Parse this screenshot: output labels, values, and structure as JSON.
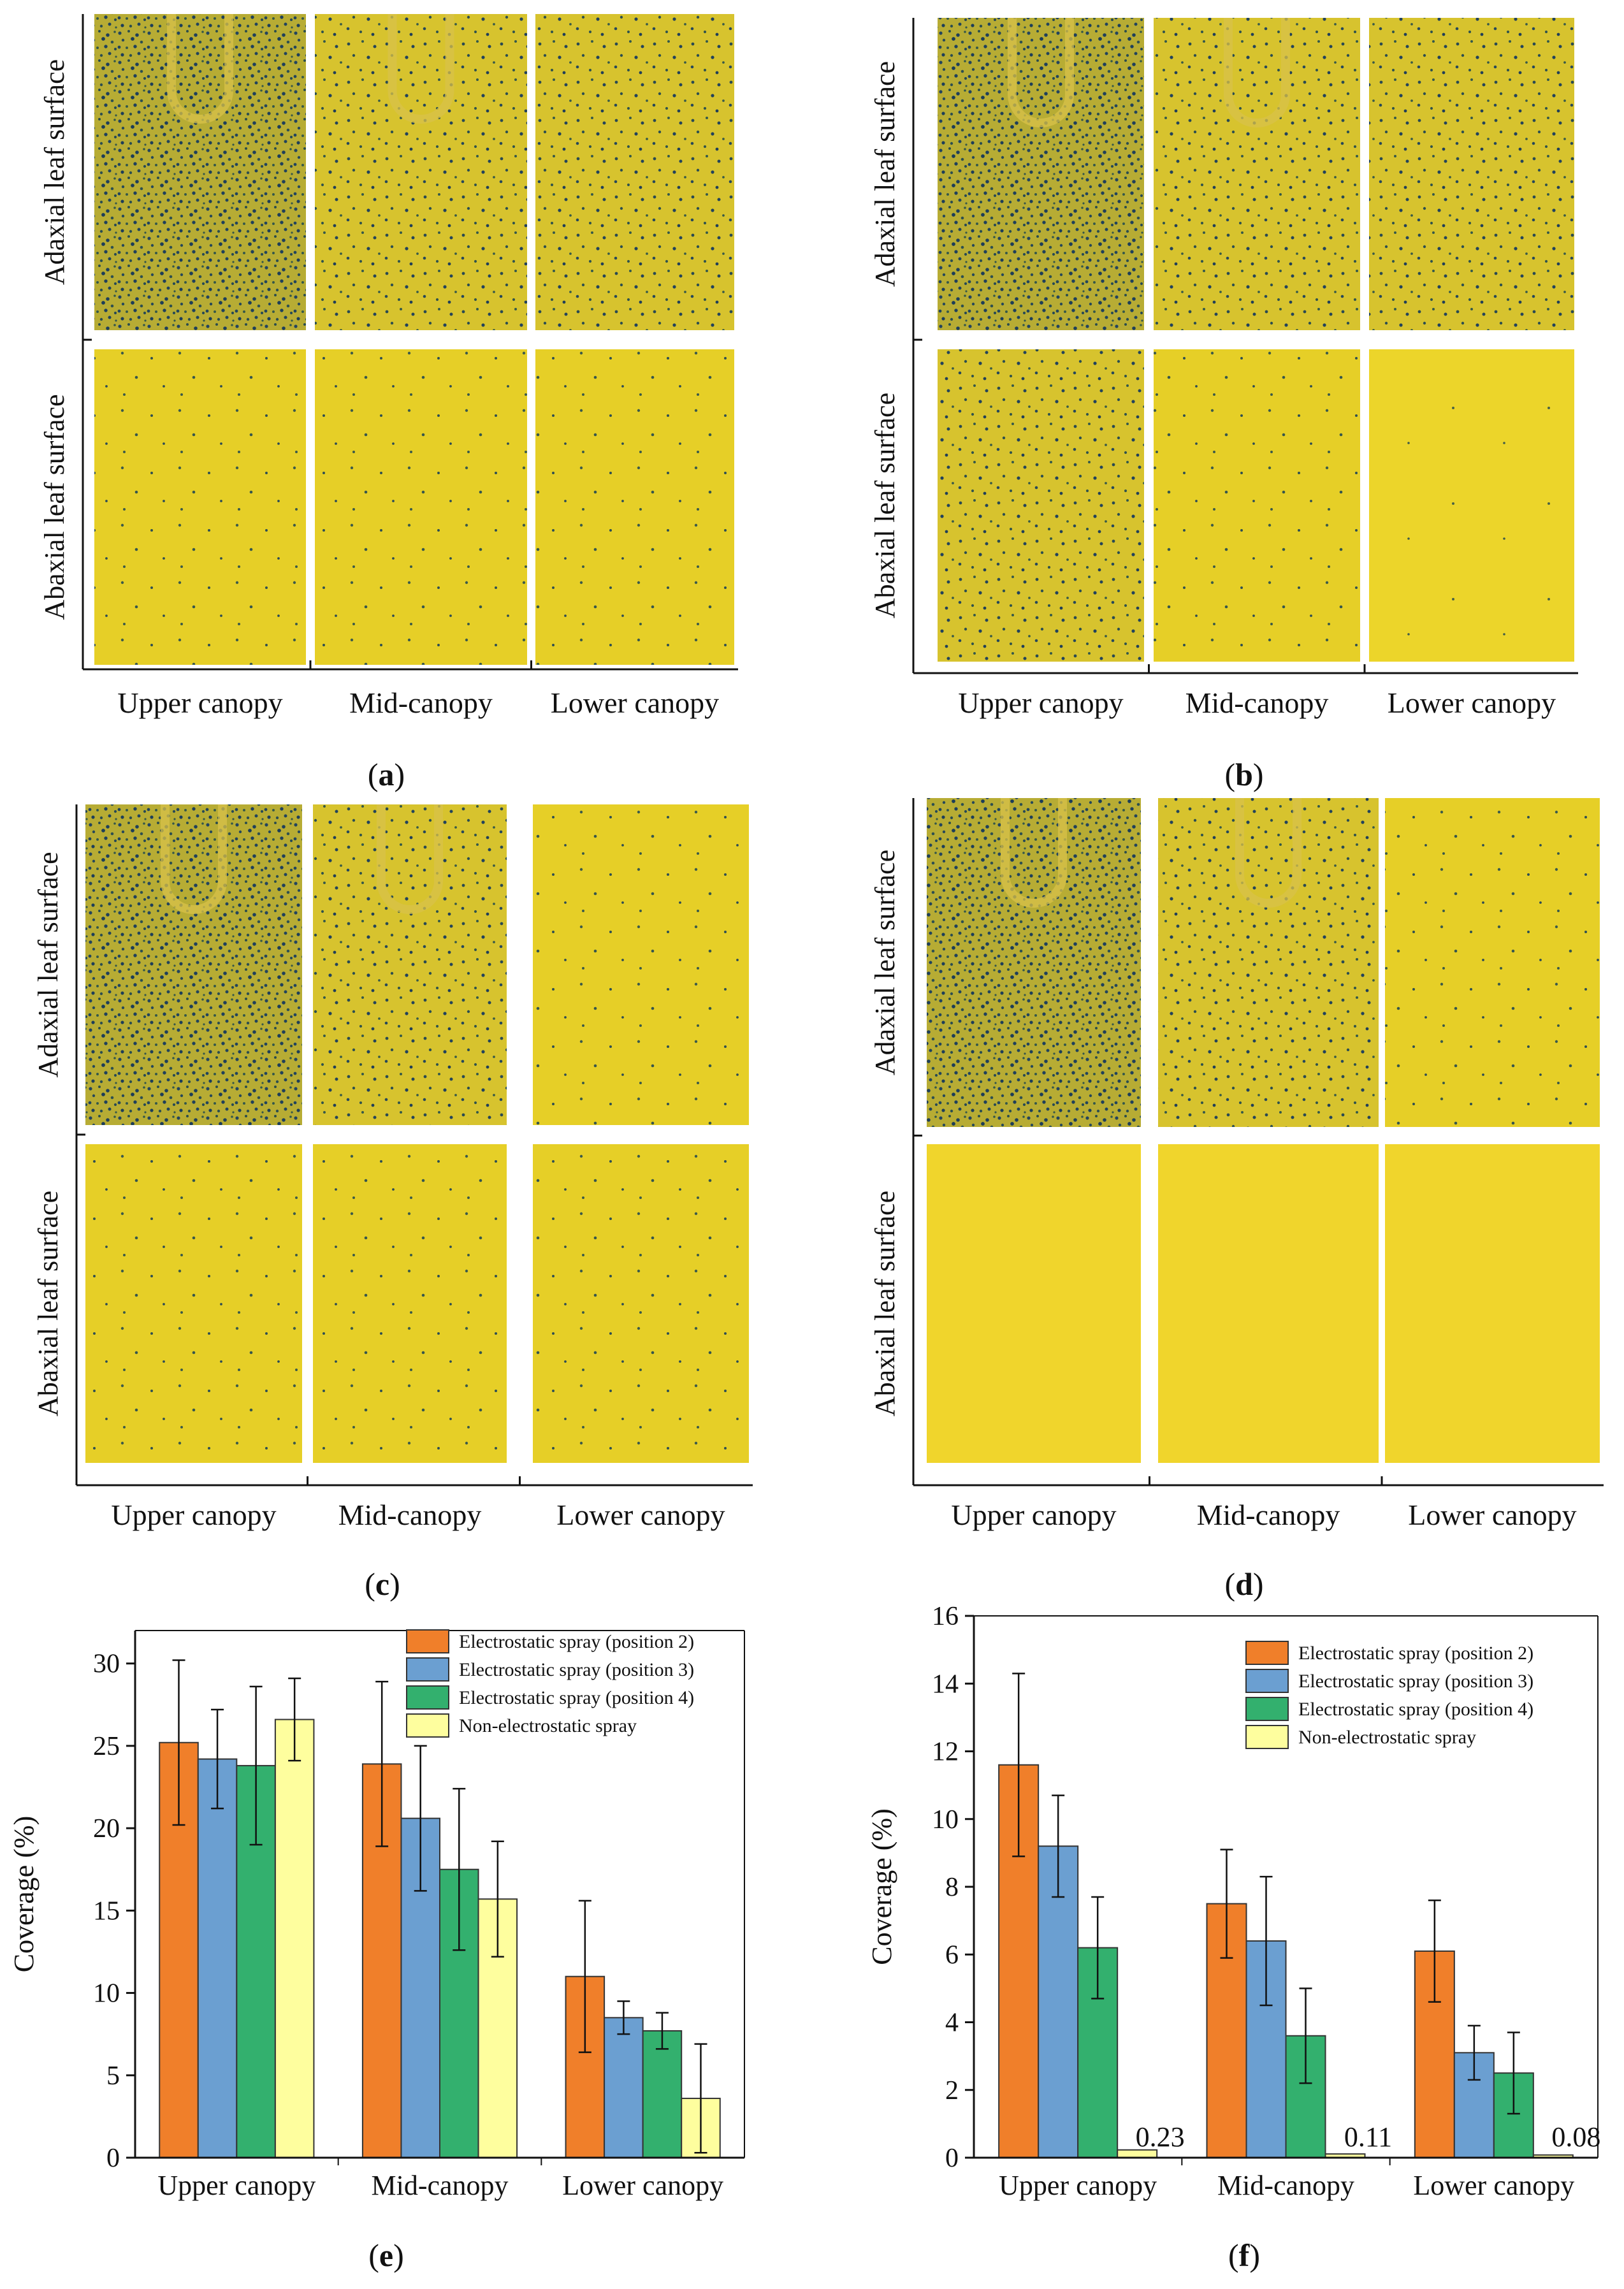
{
  "photo_panels": [
    {
      "letter": "a",
      "row_labels": [
        "Adaxial leaf surface",
        "Abaxial leaf surface"
      ],
      "col_labels": [
        "Upper canopy",
        "Mid-canopy",
        "Lower canopy"
      ]
    },
    {
      "letter": "b",
      "row_labels": [
        "Adaxial leaf surface",
        "Abaxial leaf surface"
      ],
      "col_labels": [
        "Upper canopy",
        "Mid-canopy",
        "Lower canopy"
      ]
    },
    {
      "letter": "c",
      "row_labels": [
        "Adaxial leaf surface",
        "Abaxial leaf surface"
      ],
      "col_labels": [
        "Upper canopy",
        "Mid-canopy",
        "Lower canopy"
      ]
    },
    {
      "letter": "d",
      "row_labels": [
        "Adaxial leaf surface",
        "Abaxial leaf surface"
      ],
      "col_labels": [
        "Upper canopy",
        "Mid-canopy",
        "Lower canopy"
      ]
    }
  ],
  "colors": {
    "position2": "#f07f2a",
    "position3": "#6b9fd1",
    "position4": "#33b06e",
    "non_electrostatic": "#fefe9e",
    "paper_yellow": "#e2c628",
    "stain_blue": "#1c3f5e"
  },
  "chart_data": [
    {
      "type": "bar",
      "panel_letter": "e",
      "title": "",
      "xlabel": "",
      "ylabel": "Coverage (%)",
      "ylim": [
        0,
        32
      ],
      "yticks": [
        0,
        5,
        10,
        15,
        20,
        25,
        30
      ],
      "categories": [
        "Upper canopy",
        "Mid-canopy",
        "Lower canopy"
      ],
      "series": [
        {
          "name": "Electrostatic spray (position 2)",
          "values": [
            25.2,
            23.9,
            11.0
          ],
          "errors": [
            5.0,
            5.0,
            4.6
          ]
        },
        {
          "name": "Electrostatic spray (position 3)",
          "values": [
            24.2,
            20.6,
            8.5
          ],
          "errors": [
            3.0,
            4.4,
            1.0
          ]
        },
        {
          "name": "Electrostatic spray (position 4)",
          "values": [
            23.8,
            17.5,
            7.7
          ],
          "errors": [
            4.8,
            4.9,
            1.1
          ]
        },
        {
          "name": "Non-electrostatic spray",
          "values": [
            26.6,
            15.7,
            3.6
          ],
          "errors": [
            2.5,
            3.5,
            3.3
          ]
        }
      ],
      "annotations": [],
      "legend_position": "top-right",
      "grid": false
    },
    {
      "type": "bar",
      "panel_letter": "f",
      "title": "",
      "xlabel": "",
      "ylabel": "Coverage (%)",
      "ylim": [
        0,
        16
      ],
      "yticks": [
        0,
        2,
        4,
        6,
        8,
        10,
        12,
        14,
        16
      ],
      "categories": [
        "Upper canopy",
        "Mid-canopy",
        "Lower canopy"
      ],
      "series": [
        {
          "name": "Electrostatic spray (position 2)",
          "values": [
            11.6,
            7.5,
            6.1
          ],
          "errors": [
            2.7,
            1.6,
            1.5
          ]
        },
        {
          "name": "Electrostatic spray (position 3)",
          "values": [
            9.2,
            6.4,
            3.1
          ],
          "errors": [
            1.5,
            1.9,
            0.8
          ]
        },
        {
          "name": "Electrostatic spray (position 4)",
          "values": [
            6.2,
            3.6,
            2.5
          ],
          "errors": [
            1.5,
            1.4,
            1.2
          ]
        },
        {
          "name": "Non-electrostatic spray",
          "values": [
            0.23,
            0.11,
            0.08
          ],
          "errors": [
            0,
            0,
            0
          ]
        }
      ],
      "annotations": [
        "0.23",
        "0.11",
        "0.08"
      ],
      "legend_position": "top-right",
      "grid": false
    }
  ]
}
